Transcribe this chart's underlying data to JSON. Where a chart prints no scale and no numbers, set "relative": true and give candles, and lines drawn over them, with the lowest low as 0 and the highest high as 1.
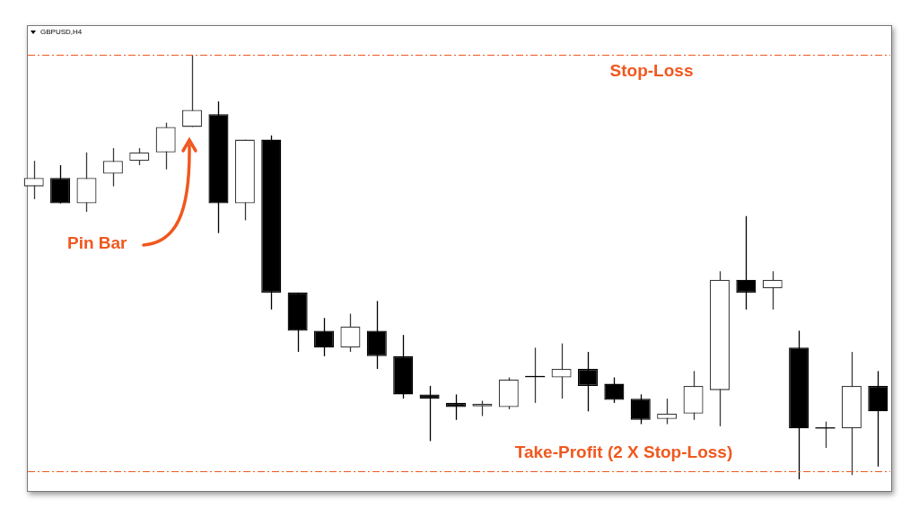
{
  "chart_data": {
    "type": "candlestick",
    "title": "GBPUSD,H4",
    "relative": true,
    "categories": [
      null,
      null,
      null,
      null,
      null,
      null,
      null,
      null,
      null,
      null,
      null,
      null,
      null,
      null,
      null,
      null,
      null,
      null,
      null,
      null,
      null,
      null,
      null,
      null,
      null,
      null,
      null,
      null,
      null,
      null,
      null,
      null,
      null
    ],
    "ohlc": [
      [
        0.69,
        0.75,
        0.66,
        0.71
      ],
      [
        0.71,
        0.74,
        0.65,
        0.65
      ],
      [
        0.65,
        0.77,
        0.63,
        0.71
      ],
      [
        0.72,
        0.78,
        0.69,
        0.75
      ],
      [
        0.75,
        0.78,
        0.74,
        0.77
      ],
      [
        0.77,
        0.84,
        0.73,
        0.83
      ],
      [
        0.83,
        1,
        0.83,
        0.87
      ],
      [
        0.86,
        0.89,
        0.58,
        0.65
      ],
      [
        0.65,
        0.8,
        0.61,
        0.8
      ],
      [
        0.8,
        0.81,
        0.4,
        0.44
      ],
      [
        0.44,
        0.44,
        0.3,
        0.35
      ],
      [
        0.35,
        0.38,
        0.29,
        0.31
      ],
      [
        0.31,
        0.39,
        0.3,
        0.36
      ],
      [
        0.35,
        0.42,
        0.26,
        0.29
      ],
      [
        0.29,
        0.34,
        0.19,
        0.2
      ],
      [
        0.2,
        0.22,
        0.09,
        0.19
      ],
      [
        0.18,
        0.2,
        0.14,
        0.17
      ],
      [
        0.172,
        0.185,
        0.149,
        0.178
      ],
      [
        0.17,
        0.24,
        0.165,
        0.235
      ],
      [
        0.242,
        0.31,
        0.18,
        0.242
      ],
      [
        0.24,
        0.32,
        0.19,
        0.26
      ],
      [
        0.26,
        0.3,
        0.16,
        0.22
      ],
      [
        0.225,
        0.24,
        0.18,
        0.187
      ],
      [
        0.19,
        0.2,
        0.13,
        0.14
      ],
      [
        0.142,
        0.19,
        0.13,
        0.155
      ],
      [
        0.155,
        0.255,
        0.14,
        0.22
      ],
      [
        0.21,
        0.49,
        0.125,
        0.47
      ],
      [
        0.47,
        0.62,
        0.4,
        0.44
      ],
      [
        0.45,
        0.49,
        0.4,
        0.47
      ],
      [
        0.31,
        0.35,
        0,
        0.12
      ],
      [
        0.121,
        0.136,
        0.074,
        0.121
      ],
      [
        0.12,
        0.3,
        0.01,
        0.22
      ],
      [
        0.22,
        0.255,
        0.03,
        0.16
      ]
    ],
    "ref_lines": [
      {
        "axis": "y",
        "value": 1,
        "label": "Stop-Loss",
        "color": "#f0581e",
        "line_style": "dashed"
      },
      {
        "axis": "y",
        "value": 0.02,
        "label": "Take-Profit (2 X Stop-Loss)",
        "color": "#f0581e",
        "line_style": "dashed"
      }
    ],
    "annotations": [
      "Pin Bar"
    ],
    "grid": false,
    "legend": false
  }
}
